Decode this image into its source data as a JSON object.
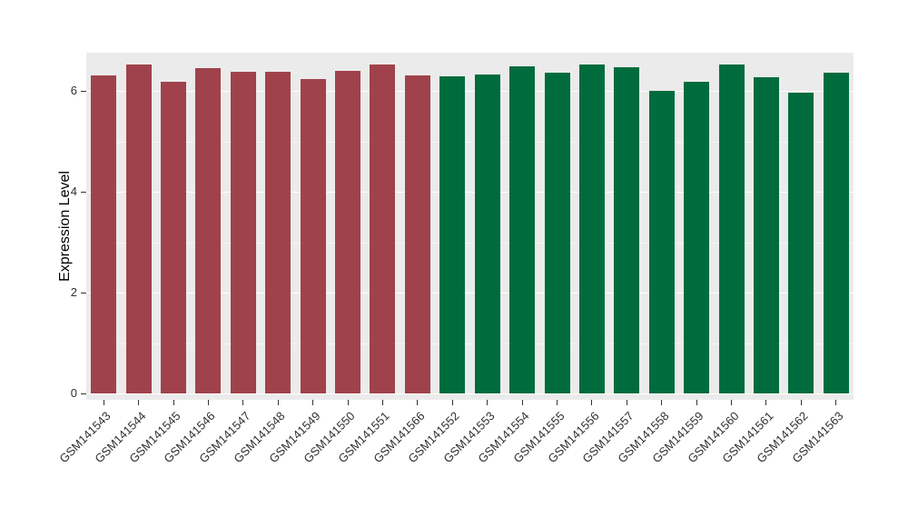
{
  "chart_data": {
    "type": "bar",
    "title": "",
    "xlabel": "",
    "ylabel": "Expression Level",
    "ylim": [
      0,
      6.8
    ],
    "yticks": [
      0,
      2,
      4,
      6
    ],
    "ytick_labels": [
      "0",
      "2",
      "4",
      "6"
    ],
    "minor_yticks": [
      1,
      3,
      5
    ],
    "grid": "on",
    "legend": "none",
    "panel_background": "#EBEBEB",
    "gridline_color": "#FFFFFF",
    "group_colors": {
      "group1": "#A0424B",
      "group2": "#006C3D"
    },
    "categories": [
      "GSM141543",
      "GSM141544",
      "GSM141545",
      "GSM141546",
      "GSM141547",
      "GSM141548",
      "GSM141549",
      "GSM141550",
      "GSM141551",
      "GSM141566",
      "GSM141552",
      "GSM141553",
      "GSM141554",
      "GSM141555",
      "GSM141556",
      "GSM141557",
      "GSM141558",
      "GSM141559",
      "GSM141560",
      "GSM141561",
      "GSM141562",
      "GSM141563"
    ],
    "values": [
      6.3,
      6.52,
      6.18,
      6.45,
      6.38,
      6.37,
      6.23,
      6.4,
      6.52,
      6.31,
      6.29,
      6.33,
      6.48,
      6.36,
      6.52,
      6.46,
      6.0,
      6.18,
      6.52,
      6.27,
      5.97,
      6.36
    ],
    "colors": [
      "#A0424B",
      "#A0424B",
      "#A0424B",
      "#A0424B",
      "#A0424B",
      "#A0424B",
      "#A0424B",
      "#A0424B",
      "#A0424B",
      "#A0424B",
      "#006C3D",
      "#006C3D",
      "#006C3D",
      "#006C3D",
      "#006C3D",
      "#006C3D",
      "#006C3D",
      "#006C3D",
      "#006C3D",
      "#006C3D",
      "#006C3D",
      "#006C3D"
    ]
  }
}
